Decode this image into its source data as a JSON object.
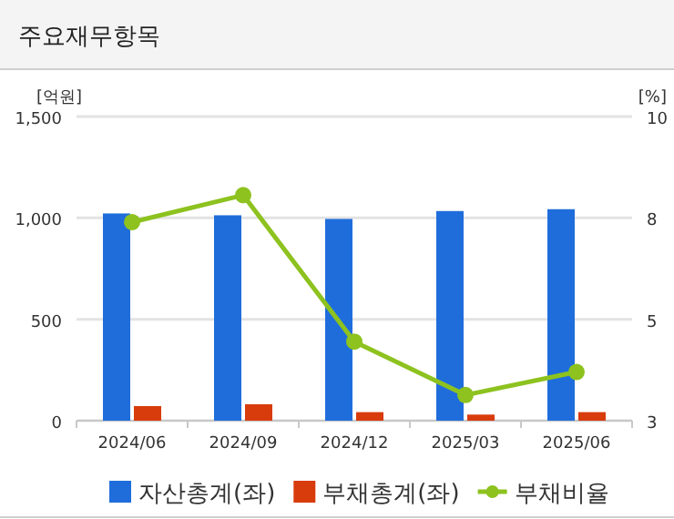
{
  "chart_data": {
    "type": "bar",
    "title": "주요재무항목",
    "ylabel": "[억원]",
    "y2label": "[%]",
    "categories": [
      "2024/06",
      "2024/09",
      "2024/12",
      "2025/03",
      "2025/06"
    ],
    "series": [
      {
        "name": "자산총계(좌)",
        "color": "#1f6ddb",
        "values": [
          1022,
          1013,
          995,
          1034,
          1043
        ]
      },
      {
        "name": "부채총계(좌)",
        "color": "#d83b0c",
        "values": [
          72,
          81,
          42,
          30,
          42
        ]
      },
      {
        "name": "부채비율",
        "type": "line",
        "axis": "y2",
        "color": "#8dc21f",
        "marker": "circle",
        "values": [
          7.57,
          8.19,
          4.82,
          3.59,
          4.12
        ]
      }
    ],
    "ylim": [
      0,
      1500
    ],
    "yticks": [
      0,
      500,
      {
        "value": 1000,
        "label": "1,000"
      },
      {
        "value": 1500,
        "label": "1,500"
      }
    ],
    "y2lim": [
      3,
      10
    ],
    "y2ticks": [
      3,
      {
        "value": 5.333,
        "label": "5"
      },
      {
        "value": 7.667,
        "label": "8"
      },
      10
    ],
    "grid": "y",
    "legend": "bottom"
  }
}
